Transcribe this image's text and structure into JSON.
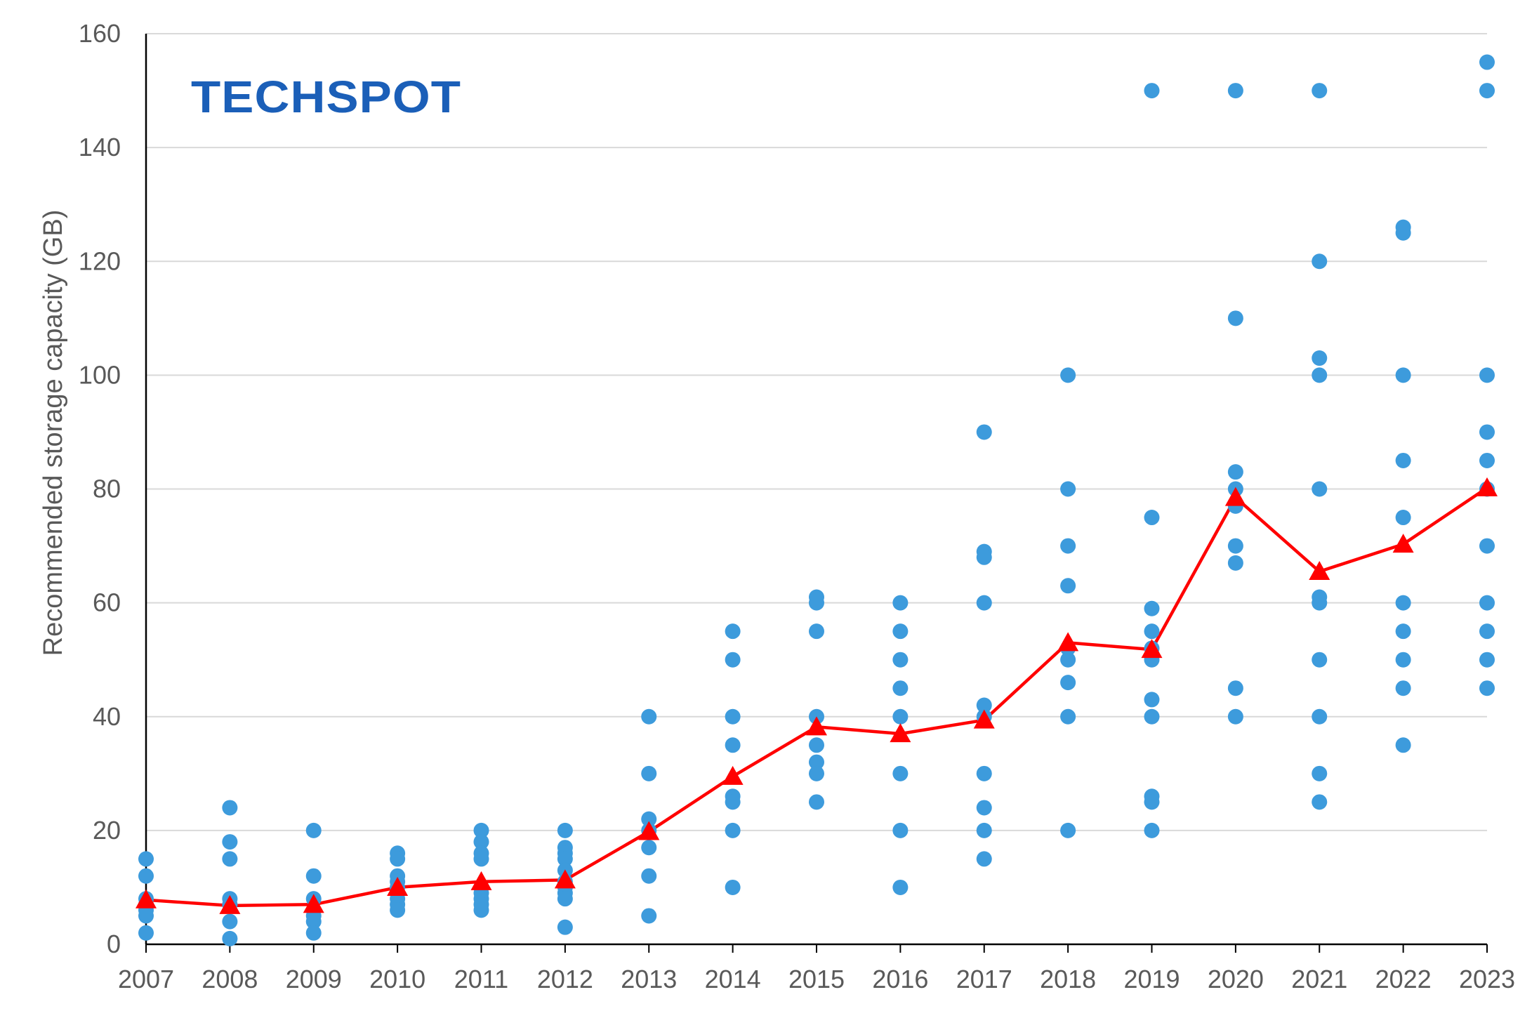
{
  "brand": {
    "logo_text": "TECHSPOT",
    "color": "#1b5fb8"
  },
  "chart_data": {
    "type": "scatter",
    "ylabel": "Recommended storage capacity (GB)",
    "xlabel": "",
    "title": "",
    "ylim": [
      0,
      160
    ],
    "yticks": [
      0,
      20,
      40,
      60,
      80,
      100,
      120,
      140,
      160
    ],
    "categories": [
      "2007",
      "2008",
      "2009",
      "2010",
      "2011",
      "2012",
      "2013",
      "2014",
      "2015",
      "2016",
      "2017",
      "2018",
      "2019",
      "2020",
      "2021",
      "2022",
      "2023"
    ],
    "grid": "horizontal",
    "colors": {
      "points": "#3d9bdc",
      "average": "#ff0000"
    },
    "series": [
      {
        "kind": "points",
        "values_by_year": [
          [
            15,
            12,
            8,
            7,
            6,
            5,
            2
          ],
          [
            24,
            18,
            15,
            8,
            7,
            4,
            1
          ],
          [
            20,
            12,
            8,
            5,
            4,
            2
          ],
          [
            16,
            15,
            12,
            11,
            10,
            9,
            8,
            7,
            6
          ],
          [
            20,
            18,
            16,
            15,
            10,
            9,
            8,
            7,
            6
          ],
          [
            20,
            17,
            16,
            15,
            13,
            11,
            10,
            9,
            8,
            3
          ],
          [
            40,
            30,
            22,
            20,
            17,
            12,
            5
          ],
          [
            55,
            50,
            40,
            35,
            26,
            25,
            20,
            10
          ],
          [
            61,
            60,
            55,
            40,
            35,
            32,
            30,
            25
          ],
          [
            60,
            55,
            50,
            45,
            40,
            30,
            20,
            10
          ],
          [
            90,
            69,
            68,
            60,
            42,
            40,
            30,
            24,
            20,
            15
          ],
          [
            100,
            80,
            70,
            63,
            52,
            50,
            46,
            40,
            20
          ],
          [
            150,
            75,
            59,
            55,
            52,
            50,
            43,
            40,
            26,
            25,
            20
          ],
          [
            150,
            110,
            83,
            80,
            77,
            70,
            67,
            45,
            40
          ],
          [
            150,
            120,
            103,
            100,
            80,
            61,
            60,
            50,
            40,
            30,
            25
          ],
          [
            126,
            125,
            100,
            85,
            75,
            60,
            55,
            50,
            45,
            35
          ],
          [
            155,
            150,
            100,
            90,
            85,
            80,
            70,
            60,
            55,
            50,
            45
          ]
        ]
      },
      {
        "kind": "average",
        "values": [
          7.8,
          6.8,
          7.0,
          10.0,
          11.0,
          11.3,
          19.8,
          29.5,
          38.2,
          37.0,
          39.4,
          53.0,
          51.8,
          78.5,
          65.5,
          70.3,
          80.2
        ]
      }
    ]
  }
}
